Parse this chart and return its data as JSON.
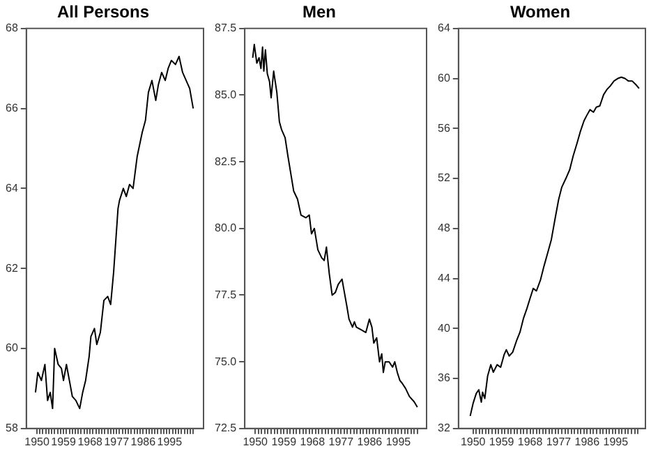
{
  "chart_data": [
    {
      "type": "line",
      "title": "All Persons",
      "xlim": [
        1946.4,
        2006.5
      ],
      "ylim": [
        58,
        68
      ],
      "yticks": [
        58,
        60,
        62,
        64,
        66,
        68
      ],
      "grid": false,
      "legend": false,
      "marker": "none",
      "line_style": "solid",
      "xticks": [
        1950,
        {
          "value": 1951,
          "label": null
        },
        {
          "value": 1952,
          "label": null
        },
        {
          "value": 1953,
          "label": null
        },
        {
          "value": 1954,
          "label": null
        },
        {
          "value": 1955,
          "label": null
        },
        {
          "value": 1956,
          "label": null
        },
        {
          "value": 1957,
          "label": null
        },
        {
          "value": 1958,
          "label": null
        },
        1959,
        {
          "value": 1960,
          "label": null
        },
        {
          "value": 1961,
          "label": null
        },
        {
          "value": 1962,
          "label": null
        },
        {
          "value": 1963,
          "label": null
        },
        {
          "value": 1964,
          "label": null
        },
        {
          "value": 1965,
          "label": null
        },
        {
          "value": 1966,
          "label": null
        },
        {
          "value": 1967,
          "label": null
        },
        1968,
        {
          "value": 1969,
          "label": null
        },
        {
          "value": 1970,
          "label": null
        },
        {
          "value": 1971,
          "label": null
        },
        {
          "value": 1972,
          "label": null
        },
        {
          "value": 1973,
          "label": null
        },
        {
          "value": 1974,
          "label": null
        },
        {
          "value": 1975,
          "label": null
        },
        {
          "value": 1976,
          "label": null
        },
        1977,
        {
          "value": 1978,
          "label": null
        },
        {
          "value": 1979,
          "label": null
        },
        {
          "value": 1980,
          "label": null
        },
        {
          "value": 1981,
          "label": null
        },
        {
          "value": 1982,
          "label": null
        },
        {
          "value": 1983,
          "label": null
        },
        {
          "value": 1984,
          "label": null
        },
        {
          "value": 1985,
          "label": null
        },
        1986,
        {
          "value": 1987,
          "label": null
        },
        {
          "value": 1988,
          "label": null
        },
        {
          "value": 1989,
          "label": null
        },
        {
          "value": 1990,
          "label": null
        },
        {
          "value": 1991,
          "label": null
        },
        {
          "value": 1992,
          "label": null
        },
        {
          "value": 1993,
          "label": null
        },
        {
          "value": 1994,
          "label": null
        },
        1995,
        {
          "value": 1996,
          "label": null
        },
        {
          "value": 1997,
          "label": null
        },
        {
          "value": 1998,
          "label": null
        },
        {
          "value": 1999,
          "label": null
        },
        {
          "value": 2000,
          "label": null
        },
        {
          "value": 2001,
          "label": null
        },
        {
          "value": 2002,
          "label": null
        },
        {
          "value": 2003,
          "label": null
        }
      ],
      "series": [
        {
          "color": "#000000",
          "x": [
            1949.5,
            1950.3,
            1951.5,
            1952.7,
            1953.6,
            1954.5,
            1955.3,
            1956,
            1957.2,
            1958.3,
            1959,
            1960,
            1961,
            1962,
            1963.2,
            1964.5,
            1965.5,
            1966.5,
            1967.7,
            1968.3,
            1969.5,
            1970.3,
            1971.5,
            1972.7,
            1974,
            1975,
            1976,
            1977.5,
            1978,
            1979.3,
            1980.3,
            1981.4,
            1982.6,
            1984,
            1985.7,
            1986.8,
            1987.8,
            1989,
            1990.3,
            1991.2,
            1992.3,
            1993.5,
            1994.5,
            1995.6,
            1997,
            1998.2,
            1999.4,
            2000.6,
            2001.8,
            2003
          ],
          "values": [
            58.9,
            59.4,
            59.2,
            59.6,
            58.7,
            58.9,
            58.5,
            60.0,
            59.6,
            59.5,
            59.2,
            59.6,
            59.2,
            58.8,
            58.7,
            58.5,
            58.9,
            59.2,
            59.8,
            60.3,
            60.5,
            60.1,
            60.4,
            61.2,
            61.3,
            61.1,
            61.9,
            63.5,
            63.7,
            64.0,
            63.8,
            64.1,
            64.0,
            64.8,
            65.4,
            65.7,
            66.4,
            66.7,
            66.2,
            66.6,
            66.9,
            66.7,
            67.0,
            67.2,
            67.1,
            67.3,
            66.9,
            66.7,
            66.5,
            66.0
          ]
        }
      ]
    },
    {
      "type": "line",
      "title": "Men",
      "xlim": [
        1946.7,
        2003.9
      ],
      "ylim": [
        72.5,
        87.5
      ],
      "yticks": [
        72.5,
        {
          "value": 75,
          "label": "75.0"
        },
        77.5,
        {
          "value": 80,
          "label": "80.0"
        },
        82.5,
        {
          "value": 85,
          "label": "85.0"
        },
        87.5
      ],
      "grid": false,
      "legend": false,
      "marker": "none",
      "line_style": "solid",
      "xticks": [
        1950,
        {
          "value": 1951,
          "label": null
        },
        {
          "value": 1952,
          "label": null
        },
        {
          "value": 1953,
          "label": null
        },
        {
          "value": 1954,
          "label": null
        },
        {
          "value": 1955,
          "label": null
        },
        {
          "value": 1956,
          "label": null
        },
        {
          "value": 1957,
          "label": null
        },
        {
          "value": 1958,
          "label": null
        },
        1959,
        {
          "value": 1960,
          "label": null
        },
        {
          "value": 1961,
          "label": null
        },
        {
          "value": 1962,
          "label": null
        },
        {
          "value": 1963,
          "label": null
        },
        {
          "value": 1964,
          "label": null
        },
        {
          "value": 1965,
          "label": null
        },
        {
          "value": 1966,
          "label": null
        },
        {
          "value": 1967,
          "label": null
        },
        1968,
        {
          "value": 1969,
          "label": null
        },
        {
          "value": 1970,
          "label": null
        },
        {
          "value": 1971,
          "label": null
        },
        {
          "value": 1972,
          "label": null
        },
        {
          "value": 1973,
          "label": null
        },
        {
          "value": 1974,
          "label": null
        },
        {
          "value": 1975,
          "label": null
        },
        {
          "value": 1976,
          "label": null
        },
        1977,
        {
          "value": 1978,
          "label": null
        },
        {
          "value": 1979,
          "label": null
        },
        {
          "value": 1980,
          "label": null
        },
        {
          "value": 1981,
          "label": null
        },
        {
          "value": 1982,
          "label": null
        },
        {
          "value": 1983,
          "label": null
        },
        {
          "value": 1984,
          "label": null
        },
        {
          "value": 1985,
          "label": null
        },
        1986,
        {
          "value": 1987,
          "label": null
        },
        {
          "value": 1988,
          "label": null
        },
        {
          "value": 1989,
          "label": null
        },
        {
          "value": 1990,
          "label": null
        },
        {
          "value": 1991,
          "label": null
        },
        {
          "value": 1992,
          "label": null
        },
        {
          "value": 1993,
          "label": null
        },
        {
          "value": 1994,
          "label": null
        },
        1995,
        {
          "value": 1996,
          "label": null
        },
        {
          "value": 1997,
          "label": null
        },
        {
          "value": 1998,
          "label": null
        },
        {
          "value": 1999,
          "label": null
        },
        {
          "value": 2000,
          "label": null
        },
        {
          "value": 2001,
          "label": null
        }
      ],
      "series": [
        {
          "color": "#000000",
          "x": [
            1949.2,
            1949.7,
            1950.5,
            1951.2,
            1951.8,
            1952.3,
            1952.7,
            1953.2,
            1953.8,
            1954.5,
            1955,
            1955.8,
            1956.8,
            1957.6,
            1958.3,
            1959.4,
            1960.3,
            1962.1,
            1963.3,
            1964.4,
            1965.9,
            1967,
            1967.7,
            1968.6,
            1969.7,
            1970.9,
            1971.7,
            1972.4,
            1973.3,
            1974.2,
            1975.2,
            1976.1,
            1977.3,
            1977.9,
            1978.8,
            1979.5,
            1980.6,
            1981.2,
            1981.8,
            1983.3,
            1984.8,
            1985.9,
            1986.7,
            1987.3,
            1988.2,
            1989.1,
            1989.8,
            1990.3,
            1990.9,
            1992.1,
            1993.2,
            1993.9,
            1994.7,
            1995.5,
            1996.2,
            1997.3,
            1998.5,
            2000,
            2001
          ],
          "values": [
            86.4,
            86.9,
            86.2,
            86.4,
            86.0,
            86.8,
            85.9,
            86.7,
            85.8,
            85.5,
            84.9,
            85.9,
            85.1,
            84.0,
            83.7,
            83.4,
            82.7,
            81.4,
            81.1,
            80.5,
            80.4,
            80.5,
            79.8,
            80.0,
            79.2,
            78.9,
            78.8,
            79.3,
            78.3,
            77.5,
            77.6,
            77.9,
            78.1,
            77.7,
            77.1,
            76.6,
            76.3,
            76.5,
            76.3,
            76.2,
            76.1,
            76.6,
            76.3,
            75.7,
            75.9,
            75.0,
            75.3,
            74.6,
            75.0,
            75.0,
            74.8,
            75.0,
            74.6,
            74.3,
            74.2,
            74.0,
            73.7,
            73.5,
            73.3
          ]
        }
      ]
    },
    {
      "type": "line",
      "title": "Women",
      "xlim": [
        1945.4,
        2004.4
      ],
      "ylim": [
        32,
        64
      ],
      "yticks": [
        32,
        36,
        40,
        44,
        48,
        52,
        56,
        60,
        64
      ],
      "grid": false,
      "legend": false,
      "marker": "none",
      "line_style": "solid",
      "xticks": [
        1950,
        {
          "value": 1951,
          "label": null
        },
        {
          "value": 1952,
          "label": null
        },
        {
          "value": 1953,
          "label": null
        },
        {
          "value": 1954,
          "label": null
        },
        {
          "value": 1955,
          "label": null
        },
        {
          "value": 1956,
          "label": null
        },
        {
          "value": 1957,
          "label": null
        },
        {
          "value": 1958,
          "label": null
        },
        1959,
        {
          "value": 1960,
          "label": null
        },
        {
          "value": 1961,
          "label": null
        },
        {
          "value": 1962,
          "label": null
        },
        {
          "value": 1963,
          "label": null
        },
        {
          "value": 1964,
          "label": null
        },
        {
          "value": 1965,
          "label": null
        },
        {
          "value": 1966,
          "label": null
        },
        {
          "value": 1967,
          "label": null
        },
        1968,
        {
          "value": 1969,
          "label": null
        },
        {
          "value": 1970,
          "label": null
        },
        {
          "value": 1971,
          "label": null
        },
        {
          "value": 1972,
          "label": null
        },
        {
          "value": 1973,
          "label": null
        },
        {
          "value": 1974,
          "label": null
        },
        {
          "value": 1975,
          "label": null
        },
        {
          "value": 1976,
          "label": null
        },
        1977,
        {
          "value": 1978,
          "label": null
        },
        {
          "value": 1979,
          "label": null
        },
        {
          "value": 1980,
          "label": null
        },
        {
          "value": 1981,
          "label": null
        },
        {
          "value": 1982,
          "label": null
        },
        {
          "value": 1983,
          "label": null
        },
        {
          "value": 1984,
          "label": null
        },
        {
          "value": 1985,
          "label": null
        },
        1986,
        {
          "value": 1987,
          "label": null
        },
        {
          "value": 1988,
          "label": null
        },
        {
          "value": 1989,
          "label": null
        },
        {
          "value": 1990,
          "label": null
        },
        {
          "value": 1991,
          "label": null
        },
        {
          "value": 1992,
          "label": null
        },
        {
          "value": 1993,
          "label": null
        },
        {
          "value": 1994,
          "label": null
        },
        1995,
        {
          "value": 1996,
          "label": null
        },
        {
          "value": 1997,
          "label": null
        },
        {
          "value": 1998,
          "label": null
        },
        {
          "value": 1999,
          "label": null
        },
        {
          "value": 2000,
          "label": null
        },
        {
          "value": 2001,
          "label": null
        },
        {
          "value": 2002,
          "label": null
        }
      ],
      "series": [
        {
          "color": "#000000",
          "x": [
            1949.1,
            1950,
            1951,
            1951.8,
            1952.6,
            1953,
            1953.7,
            1954.6,
            1955.6,
            1956.4,
            1957.6,
            1958.7,
            1959.8,
            1960.5,
            1961.4,
            1962.5,
            1963.7,
            1964.8,
            1965.9,
            1967,
            1968.1,
            1969,
            1970,
            1971.3,
            1972.4,
            1973.5,
            1974.7,
            1975.9,
            1977,
            1978,
            1979.3,
            1980.5,
            1981.6,
            1982.8,
            1983.8,
            1985,
            1985.8,
            1986.9,
            1988,
            1988.9,
            1990,
            1991.2,
            1992.2,
            1993.3,
            1994.5,
            1995.7,
            1996.8,
            1997.9,
            1999,
            2000.2,
            2001.4,
            2002.4
          ],
          "values": [
            33.0,
            34.0,
            34.8,
            35.1,
            34.1,
            34.9,
            34.4,
            36.2,
            37.1,
            36.5,
            37.1,
            36.9,
            37.9,
            38.3,
            37.8,
            38.1,
            39.0,
            39.7,
            40.8,
            41.6,
            42.5,
            43.2,
            43.0,
            43.9,
            45.0,
            46.0,
            47.1,
            48.8,
            50.3,
            51.3,
            52.0,
            52.7,
            53.8,
            54.8,
            55.7,
            56.6,
            57.0,
            57.5,
            57.3,
            57.7,
            57.8,
            58.7,
            59.1,
            59.4,
            59.8,
            60.0,
            60.1,
            60.0,
            59.8,
            59.8,
            59.5,
            59.2
          ]
        }
      ]
    }
  ]
}
